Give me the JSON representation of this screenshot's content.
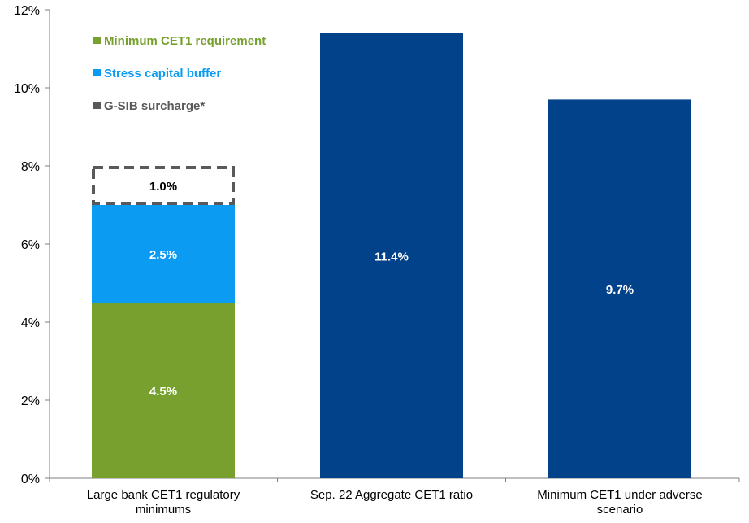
{
  "chart_data": {
    "type": "bar",
    "stacked": true,
    "categories": [
      [
        "Large bank CET1 regulatory",
        "minimums"
      ],
      [
        "Sep. 22 Aggregate CET1 ratio"
      ],
      [
        "Minimum CET1 under adverse",
        "scenario"
      ]
    ],
    "stack_segments": [
      {
        "name": "Minimum CET1 requirement",
        "category": 0,
        "base": 0,
        "value": 4.5,
        "label": "4.5%",
        "color": "#77A02E",
        "label_color": "#ffffff",
        "style": "solid"
      },
      {
        "name": "Stress capital buffer",
        "category": 0,
        "base": 4.5,
        "value": 2.5,
        "label": "2.5%",
        "color": "#0B9BF2",
        "label_color": "#ffffff",
        "style": "solid"
      },
      {
        "name": "G-SIB surcharge*",
        "category": 0,
        "base": 7.0,
        "value": 1.0,
        "label": "1.0%",
        "color": "#595959",
        "label_color": "#000000",
        "style": "dashed"
      },
      {
        "name": "",
        "category": 1,
        "base": 0,
        "value": 11.4,
        "label": "11.4%",
        "color": "#02428A",
        "label_color": "#ffffff",
        "style": "solid"
      },
      {
        "name": "",
        "category": 2,
        "base": 0,
        "value": 9.7,
        "label": "9.7%",
        "color": "#02428A",
        "label_color": "#ffffff",
        "style": "solid"
      }
    ],
    "legend": {
      "placement": "top-left",
      "entries": [
        {
          "name": "Minimum CET1 requirement",
          "color": "#77A02E"
        },
        {
          "name": "Stress capital buffer",
          "color": "#0B9BF2"
        },
        {
          "name": "G-SIB surcharge*",
          "color": "#595959"
        }
      ]
    },
    "y_ticks": [
      0,
      2,
      4,
      6,
      8,
      10,
      12
    ],
    "y_tick_labels": [
      "0%",
      "2%",
      "4%",
      "6%",
      "8%",
      "10%",
      "12%"
    ],
    "ylim": [
      0,
      12
    ],
    "grid": false,
    "title": "",
    "xlabel": "",
    "ylabel": ""
  }
}
